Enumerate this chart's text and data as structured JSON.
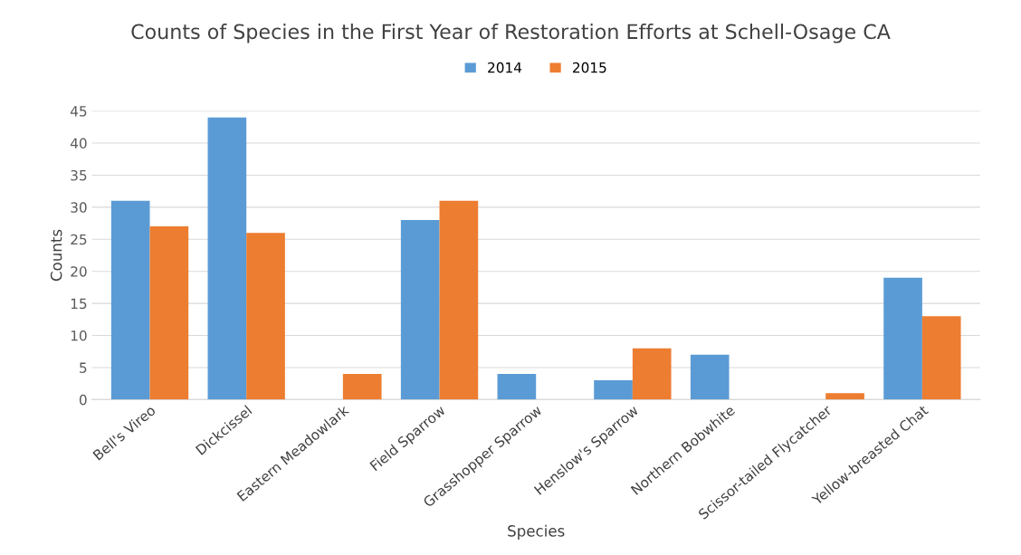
{
  "chart_data": {
    "type": "bar",
    "title": "Counts of Species in the First Year of Restoration Efforts at Schell-Osage CA",
    "xlabel": "Species",
    "ylabel": "Counts",
    "categories": [
      "Bell's Vireo",
      "Dickcissel",
      "Eastern Meadowlark",
      "Field Sparrow",
      "Grasshopper Sparrow",
      "Henslow's Sparrow",
      "Northern Bobwhite",
      "Scissor-tailed Flycatcher",
      "Yellow-breasted Chat"
    ],
    "series": [
      {
        "name": "2014",
        "color": "#5b9bd5",
        "values": [
          31,
          44,
          null,
          28,
          4,
          3,
          7,
          null,
          19
        ]
      },
      {
        "name": "2015",
        "color": "#ed7d31",
        "values": [
          27,
          26,
          4,
          31,
          null,
          8,
          null,
          1,
          13
        ]
      }
    ],
    "ylim": [
      0,
      45
    ],
    "yticks": [
      0,
      5,
      10,
      15,
      20,
      25,
      30,
      35,
      40,
      45
    ],
    "grid": "y",
    "legend": "top"
  }
}
